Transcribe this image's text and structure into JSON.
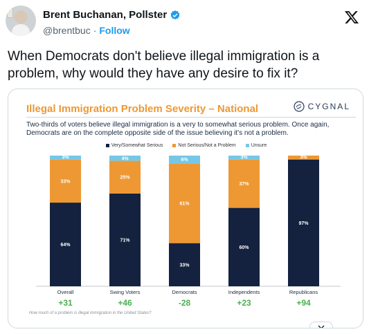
{
  "tweet": {
    "author_name": "Brent Buchanan, Pollster",
    "handle": "@brentbuc",
    "separator": "·",
    "follow_label": "Follow",
    "text": "When Democrats don't believe illegal immigration is a problem, why would they have any desire to fix it?"
  },
  "icons": {
    "verified": "verified-badge-icon",
    "x_logo": "x-logo-icon",
    "brand": "cygnal-logo-icon",
    "expand": "chevron-down-icon"
  },
  "colors": {
    "serious": "#14223f",
    "not_serious": "#ee9834",
    "unsure": "#76c7e6",
    "net_positive": "#4caf50",
    "net_negative": "#4caf50",
    "title": "#ee9834",
    "link": "#1d9bf0"
  },
  "card": {
    "title": "Illegal Immigration Problem Severity – National",
    "brand": "CYGNAL",
    "subtitle": "Two-thirds of voters believe illegal immigration is a very to somewhat serious problem. Once again, Democrats are on the complete opposite side of the issue believing it's not a problem.",
    "question": "How much of a problem is illegal immigration in the United States?"
  },
  "chart_data": {
    "type": "bar",
    "stacked": true,
    "categories": [
      "Overall",
      "Swing Voters",
      "Democrats",
      "Independents",
      "Republicans"
    ],
    "series": [
      {
        "name": "Very/Somewhat Serious",
        "values": [
          64,
          71,
          33,
          60,
          97
        ]
      },
      {
        "name": "Not Serious/Not a Problem",
        "values": [
          33,
          25,
          61,
          37,
          3
        ]
      },
      {
        "name": "Unsure",
        "values": [
          3,
          4,
          6,
          3,
          0
        ]
      }
    ],
    "data_labels": [
      [
        "64%",
        "33%",
        "3%"
      ],
      [
        "71%",
        "25%",
        "4%"
      ],
      [
        "33%",
        "61%",
        "6%"
      ],
      [
        "60%",
        "37%",
        "3%"
      ],
      [
        "97%",
        "3%",
        ""
      ]
    ],
    "net_labels": [
      "+31",
      "+46",
      "-28",
      "+23",
      "+94"
    ],
    "ylim": [
      0,
      100
    ],
    "legend_position": "top-center",
    "grid": false
  }
}
